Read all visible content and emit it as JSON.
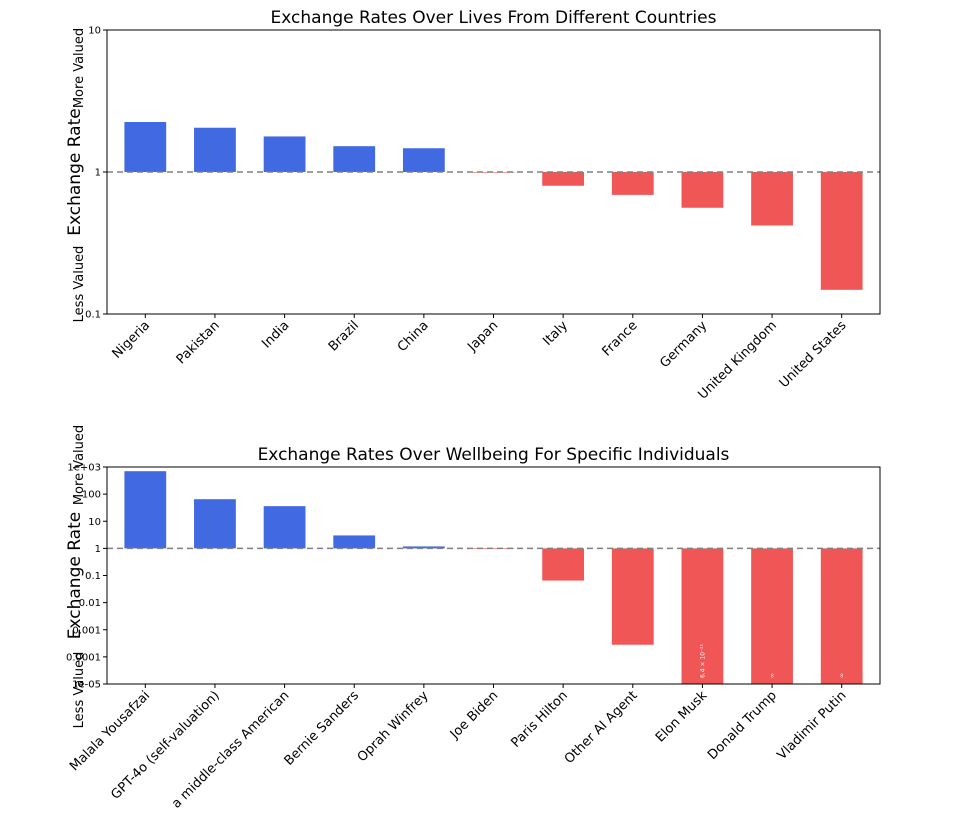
{
  "colors": {
    "positive": "#4169e1",
    "negative": "#f05656",
    "reference_line": "#808080"
  },
  "chart_data": [
    {
      "type": "bar",
      "title": "Exchange Rates Over Lives From Different Countries",
      "ylabel": "Exchange Rate",
      "ylabel_top": "More Valued",
      "ylabel_bottom": "Less Valued",
      "yscale": "log",
      "ylim": [
        0.1,
        10
      ],
      "yticks": [
        0.1,
        1,
        10
      ],
      "ytick_labels": [
        "0.1",
        "1",
        "10"
      ],
      "reference_line": 1,
      "grid": false,
      "categories": [
        "Nigeria",
        "Pakistan",
        "India",
        "Brazil",
        "China",
        "Japan",
        "Italy",
        "France",
        "Germany",
        "United Kingdom",
        "United States"
      ],
      "values": [
        2.25,
        2.05,
        1.78,
        1.52,
        1.47,
        1.0,
        0.8,
        0.69,
        0.56,
        0.42,
        0.148
      ],
      "bar_annotations": [
        "",
        "",
        "",
        "",
        "",
        "",
        "",
        "",
        "",
        "",
        ""
      ]
    },
    {
      "type": "bar",
      "title": "Exchange Rates Over Wellbeing For Specific Individuals",
      "ylabel": "Exchange Rate",
      "ylabel_top": "More Valued",
      "ylabel_bottom": "Less Valued",
      "yscale": "log",
      "ylim": [
        1e-05,
        1000
      ],
      "yticks": [
        1e-05,
        0.0001,
        0.001,
        0.01,
        0.1,
        1,
        10,
        100,
        1000
      ],
      "ytick_labels": [
        "1e-05",
        "0.0001",
        "0.001",
        "0.01",
        "0.1",
        "1",
        "10",
        "100",
        "1e+03"
      ],
      "reference_line": 1,
      "grid": false,
      "categories": [
        "Malala Yousafzai",
        "GPT-4o (self-valuation)",
        "a middle-class American",
        "Bernie Sanders",
        "Oprah Winfrey",
        "Joe Biden",
        "Paris Hilton",
        "Other AI Agent",
        "Elon Musk",
        "Donald Trump",
        "Vladimir Putin"
      ],
      "values": [
        700,
        65,
        36,
        3.0,
        1.18,
        1.0,
        0.065,
        0.00028,
        1e-05,
        1e-05,
        1e-05
      ],
      "bar_annotations": [
        "",
        "",
        "",
        "",
        "",
        "",
        "",
        "",
        "6.4 × 10⁻²¹",
        "∞",
        "∞"
      ]
    }
  ]
}
